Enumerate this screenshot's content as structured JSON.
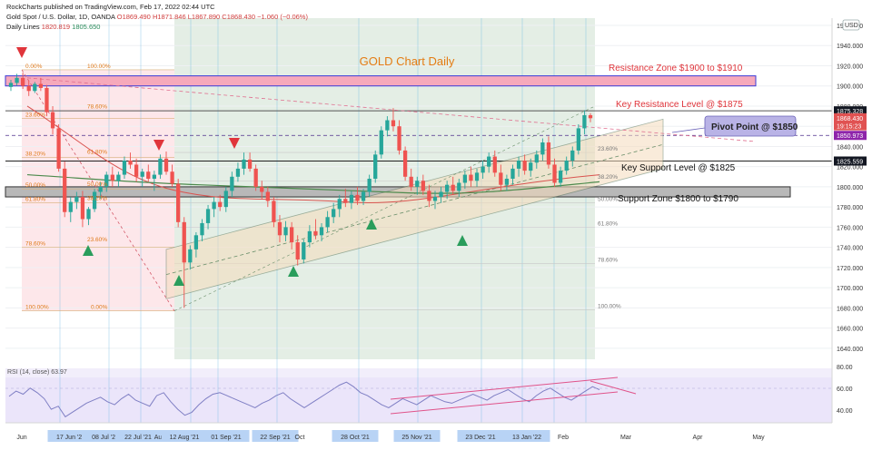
{
  "header": {
    "publisher": "RockCharts published on TradingView.com, Feb 17, 2022 02:44 UTC",
    "symbol": "Gold Spot / U.S. Dollar, 1D, OANDA",
    "ohlc": {
      "o": "O1869.490",
      "h": "H1871.846",
      "l": "L1867.890",
      "c": "C1868.430",
      "chg": "−1.060 (−0.06%)"
    },
    "daily_lines": {
      "label": "Daily Lines",
      "v1": "1820.819",
      "v2": "1805.650"
    },
    "currency_button": "USD"
  },
  "chart_data": {
    "type": "candlestick",
    "title": "GOLD Chart Daily",
    "x_labels": [
      "Jun",
      "17 Jun '21",
      "08 Jul '21",
      "22 Jul '21",
      "Aug",
      "12 Aug '21",
      "01 Sep '21",
      "22 Sep '21",
      "Oct",
      "28 Oct '21",
      "25 Nov '21",
      "23 Dec '21",
      "13 Jan '22",
      "Feb",
      "Mar",
      "Apr",
      "May"
    ],
    "y_ticks": [
      1960,
      1940,
      1920,
      1900,
      1880,
      1860,
      1840,
      1820,
      1800,
      1780,
      1760,
      1740,
      1720,
      1700,
      1680,
      1660,
      1640
    ],
    "y_tick_labels": [
      "1960.000",
      "1940.000",
      "1920.000",
      "1900.000",
      "1880.000",
      "1860.000",
      "1840.000",
      "1820.000",
      "1800.000",
      "1780.000",
      "1760.000",
      "1740.000",
      "1720.000",
      "1700.000",
      "1680.000",
      "1660.000",
      "1640.000"
    ],
    "ylim": [
      1624,
      1968
    ],
    "price_tags": [
      {
        "label": "1875.328",
        "value": 1875.328,
        "color": "#131722"
      },
      {
        "label": "1868.430",
        "value": 1868.43,
        "color": "#e05252"
      },
      {
        "label": "19:15:23",
        "value": 1860.5,
        "color": "#e05252"
      },
      {
        "label": "1850.973",
        "value": 1850.973,
        "color": "#8e24aa"
      },
      {
        "label": "1825.559",
        "value": 1825.559,
        "color": "#131722"
      }
    ],
    "annotations": [
      {
        "text": "Resistance Zone $1900 to $1910",
        "color": "#e0353b"
      },
      {
        "text": "Key Resistance Level @ $1875",
        "color": "#e0353b"
      },
      {
        "text": "Pivot Point @ $1850",
        "color": "#222"
      },
      {
        "text": "Key Support Level @ $1825",
        "color": "#111"
      },
      {
        "text": "Support Zone $1800 to $1790",
        "color": "#111"
      }
    ],
    "resistance_zone": [
      1900,
      1910
    ],
    "support_zone": [
      1790,
      1800
    ],
    "key_resistance": 1875,
    "pivot": 1850,
    "key_support": 1825,
    "fib_left": {
      "labels": [
        "0.00%",
        "100.00%",
        "23.60%",
        "78.60%",
        "38.20%",
        "61.80%",
        "50.00%",
        "50.00%",
        "61.80%",
        "38.20%",
        "78.60%",
        "23.60%",
        "100.00%",
        "0.00%"
      ],
      "levels": [
        1916,
        1916,
        1868,
        1876,
        1829,
        1831,
        1798,
        1799,
        1784,
        1785,
        1740,
        1744,
        1677,
        1677
      ]
    },
    "fib_right": {
      "labels": [
        "23.60%",
        "38.20%",
        "50.00%",
        "61.80%",
        "78.60%",
        "100.00%"
      ],
      "levels": [
        1834,
        1806,
        1784,
        1760,
        1724,
        1678
      ]
    },
    "candles": [
      [
        1899,
        1906,
        1895,
        1903
      ],
      [
        1903,
        1912,
        1900,
        1908
      ],
      [
        1908,
        1913,
        1897,
        1900
      ],
      [
        1900,
        1905,
        1890,
        1895
      ],
      [
        1895,
        1904,
        1893,
        1902
      ],
      [
        1902,
        1908,
        1895,
        1898
      ],
      [
        1898,
        1901,
        1870,
        1874
      ],
      [
        1874,
        1880,
        1852,
        1858
      ],
      [
        1858,
        1862,
        1815,
        1818
      ],
      [
        1818,
        1825,
        1770,
        1775
      ],
      [
        1775,
        1790,
        1765,
        1785
      ],
      [
        1785,
        1795,
        1778,
        1790
      ],
      [
        1790,
        1796,
        1760,
        1768
      ],
      [
        1768,
        1780,
        1762,
        1778
      ],
      [
        1778,
        1798,
        1775,
        1795
      ],
      [
        1795,
        1805,
        1788,
        1800
      ],
      [
        1800,
        1815,
        1795,
        1812
      ],
      [
        1812,
        1820,
        1800,
        1806
      ],
      [
        1806,
        1815,
        1800,
        1812
      ],
      [
        1812,
        1830,
        1808,
        1826
      ],
      [
        1826,
        1834,
        1818,
        1822
      ],
      [
        1822,
        1828,
        1805,
        1810
      ],
      [
        1810,
        1818,
        1800,
        1815
      ],
      [
        1815,
        1822,
        1805,
        1808
      ],
      [
        1808,
        1816,
        1796,
        1812
      ],
      [
        1812,
        1832,
        1808,
        1828
      ],
      [
        1828,
        1835,
        1812,
        1815
      ],
      [
        1815,
        1822,
        1800,
        1803
      ],
      [
        1803,
        1808,
        1760,
        1765
      ],
      [
        1765,
        1770,
        1680,
        1725
      ],
      [
        1725,
        1742,
        1718,
        1738
      ],
      [
        1738,
        1755,
        1730,
        1752
      ],
      [
        1752,
        1768,
        1746,
        1764
      ],
      [
        1764,
        1782,
        1758,
        1778
      ],
      [
        1778,
        1790,
        1770,
        1785
      ],
      [
        1785,
        1792,
        1776,
        1780
      ],
      [
        1780,
        1800,
        1775,
        1796
      ],
      [
        1796,
        1815,
        1790,
        1810
      ],
      [
        1810,
        1824,
        1805,
        1818
      ],
      [
        1818,
        1834,
        1812,
        1827
      ],
      [
        1827,
        1834,
        1815,
        1818
      ],
      [
        1818,
        1822,
        1796,
        1800
      ],
      [
        1800,
        1806,
        1788,
        1795
      ],
      [
        1795,
        1800,
        1780,
        1786
      ],
      [
        1786,
        1790,
        1760,
        1765
      ],
      [
        1765,
        1772,
        1745,
        1752
      ],
      [
        1752,
        1766,
        1746,
        1760
      ],
      [
        1760,
        1765,
        1738,
        1745
      ],
      [
        1745,
        1752,
        1722,
        1728
      ],
      [
        1728,
        1748,
        1724,
        1745
      ],
      [
        1745,
        1762,
        1740,
        1756
      ],
      [
        1756,
        1768,
        1748,
        1752
      ],
      [
        1752,
        1764,
        1746,
        1760
      ],
      [
        1760,
        1776,
        1755,
        1770
      ],
      [
        1770,
        1784,
        1764,
        1778
      ],
      [
        1778,
        1792,
        1770,
        1788
      ],
      [
        1788,
        1798,
        1780,
        1784
      ],
      [
        1784,
        1796,
        1778,
        1792
      ],
      [
        1792,
        1800,
        1782,
        1786
      ],
      [
        1786,
        1798,
        1782,
        1795
      ],
      [
        1795,
        1812,
        1790,
        1808
      ],
      [
        1808,
        1836,
        1804,
        1832
      ],
      [
        1832,
        1860,
        1828,
        1856
      ],
      [
        1856,
        1870,
        1850,
        1866
      ],
      [
        1866,
        1878,
        1855,
        1860
      ],
      [
        1860,
        1866,
        1832,
        1836
      ],
      [
        1836,
        1840,
        1806,
        1810
      ],
      [
        1810,
        1818,
        1796,
        1800
      ],
      [
        1800,
        1810,
        1792,
        1806
      ],
      [
        1806,
        1812,
        1792,
        1796
      ],
      [
        1796,
        1802,
        1780,
        1786
      ],
      [
        1786,
        1796,
        1778,
        1790
      ],
      [
        1790,
        1800,
        1784,
        1795
      ],
      [
        1795,
        1806,
        1788,
        1802
      ],
      [
        1802,
        1810,
        1792,
        1796
      ],
      [
        1796,
        1808,
        1790,
        1804
      ],
      [
        1804,
        1816,
        1798,
        1812
      ],
      [
        1812,
        1820,
        1800,
        1806
      ],
      [
        1806,
        1818,
        1800,
        1814
      ],
      [
        1814,
        1826,
        1808,
        1820
      ],
      [
        1820,
        1834,
        1814,
        1830
      ],
      [
        1830,
        1836,
        1810,
        1814
      ],
      [
        1814,
        1822,
        1796,
        1802
      ],
      [
        1802,
        1812,
        1796,
        1808
      ],
      [
        1808,
        1822,
        1802,
        1818
      ],
      [
        1818,
        1830,
        1810,
        1826
      ],
      [
        1826,
        1832,
        1812,
        1816
      ],
      [
        1816,
        1828,
        1810,
        1824
      ],
      [
        1824,
        1836,
        1818,
        1832
      ],
      [
        1832,
        1848,
        1826,
        1844
      ],
      [
        1844,
        1850,
        1818,
        1822
      ],
      [
        1822,
        1828,
        1800,
        1804
      ],
      [
        1804,
        1820,
        1800,
        1816
      ],
      [
        1816,
        1830,
        1812,
        1826
      ],
      [
        1826,
        1840,
        1820,
        1836
      ],
      [
        1836,
        1862,
        1832,
        1858
      ],
      [
        1858,
        1876,
        1852,
        1871
      ],
      [
        1871,
        1873,
        1864,
        1868
      ]
    ]
  }
}
